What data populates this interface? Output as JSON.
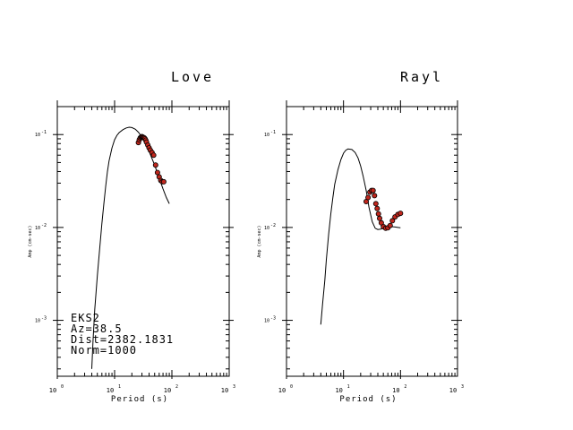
{
  "chart_data": [
    {
      "type": "line",
      "title": "Love",
      "xlabel": "Period (s)",
      "ylabel": "Amp (cm-sec)",
      "x_scale": "log",
      "y_scale": "log",
      "xlim": [
        1,
        1000
      ],
      "ylim": [
        0.00025,
        0.2
      ],
      "x_ticks": [
        {
          "value": 1,
          "base": "10",
          "exp": "0"
        },
        {
          "value": 10,
          "base": "10",
          "exp": "1"
        },
        {
          "value": 100,
          "base": "10",
          "exp": "2"
        },
        {
          "value": 1000,
          "base": "10",
          "exp": "3"
        }
      ],
      "y_ticks": [
        {
          "value": 0.1,
          "base": "10",
          "exp": "-1"
        },
        {
          "value": 0.01,
          "base": "10",
          "exp": "-2"
        },
        {
          "value": 0.001,
          "base": "10",
          "exp": "-3"
        }
      ],
      "series": [
        {
          "kind": "line",
          "x": [
            4,
            4.2,
            4.5,
            5,
            5.5,
            6,
            6.5,
            7,
            7.5,
            8,
            9,
            10,
            11,
            12,
            14,
            16,
            18,
            20,
            23,
            26,
            30,
            35,
            40,
            50,
            60,
            70,
            80,
            90
          ],
          "y": [
            0.0003,
            0.0006,
            0.0013,
            0.003,
            0.006,
            0.011,
            0.018,
            0.028,
            0.04,
            0.052,
            0.072,
            0.088,
            0.098,
            0.105,
            0.113,
            0.118,
            0.12,
            0.119,
            0.114,
            0.106,
            0.094,
            0.079,
            0.066,
            0.047,
            0.034,
            0.026,
            0.021,
            0.018
          ]
        },
        {
          "kind": "scatter",
          "x": [
            26,
            27,
            28,
            29,
            30,
            31,
            32,
            33,
            34,
            35,
            36,
            38,
            40,
            42,
            45,
            48,
            52,
            56,
            60,
            64,
            68,
            72
          ],
          "y": [
            0.082,
            0.088,
            0.092,
            0.094,
            0.095,
            0.094,
            0.093,
            0.092,
            0.09,
            0.087,
            0.083,
            0.077,
            0.072,
            0.068,
            0.064,
            0.06,
            0.047,
            0.039,
            0.035,
            0.032,
            0.031,
            0.031
          ]
        }
      ],
      "annotations": [
        "EKS2",
        "Az=38.5",
        "Dist=2382.1831",
        "Norm=1000"
      ]
    },
    {
      "type": "line",
      "title": "Rayl",
      "xlabel": "Period (s)",
      "ylabel": "Amp (cm-sec)",
      "x_scale": "log",
      "y_scale": "log",
      "xlim": [
        1,
        1000
      ],
      "ylim": [
        0.00025,
        0.2
      ],
      "x_ticks": [
        {
          "value": 1,
          "base": "10",
          "exp": "0"
        },
        {
          "value": 10,
          "base": "10",
          "exp": "1"
        },
        {
          "value": 100,
          "base": "10",
          "exp": "2"
        },
        {
          "value": 1000,
          "base": "10",
          "exp": "3"
        }
      ],
      "y_ticks": [
        {
          "value": 0.1,
          "base": "10",
          "exp": "-1"
        },
        {
          "value": 0.01,
          "base": "10",
          "exp": "-2"
        },
        {
          "value": 0.001,
          "base": "10",
          "exp": "-3"
        }
      ],
      "series": [
        {
          "kind": "line",
          "x": [
            4,
            4.3,
            4.7,
            5,
            5.5,
            6,
            6.5,
            7,
            8,
            9,
            10,
            11,
            12,
            14,
            16,
            18,
            20,
            22,
            25,
            28,
            32,
            36,
            40,
            45,
            50,
            55,
            60,
            70,
            80,
            90,
            100
          ],
          "y": [
            0.0009,
            0.0015,
            0.0027,
            0.0045,
            0.0085,
            0.014,
            0.021,
            0.029,
            0.042,
            0.054,
            0.063,
            0.068,
            0.07,
            0.069,
            0.064,
            0.056,
            0.046,
            0.036,
            0.025,
            0.0165,
            0.0115,
            0.0098,
            0.0095,
            0.0096,
            0.0098,
            0.01,
            0.0101,
            0.0102,
            0.0101,
            0.01,
            0.0099
          ]
        },
        {
          "kind": "scatter",
          "x": [
            25,
            27,
            29,
            31,
            33,
            35,
            37,
            39,
            41,
            43,
            46,
            50,
            55,
            60,
            66,
            72,
            80,
            90,
            100
          ],
          "y": [
            0.019,
            0.021,
            0.024,
            0.025,
            0.025,
            0.022,
            0.018,
            0.016,
            0.014,
            0.0125,
            0.0112,
            0.0102,
            0.0098,
            0.0099,
            0.0105,
            0.0118,
            0.013,
            0.0138,
            0.0142
          ]
        }
      ],
      "annotations": []
    }
  ],
  "colors": {
    "marker_fill": "#c0271d",
    "marker_edge": "#000000",
    "axis": "#000000",
    "background": "#ffffff"
  }
}
